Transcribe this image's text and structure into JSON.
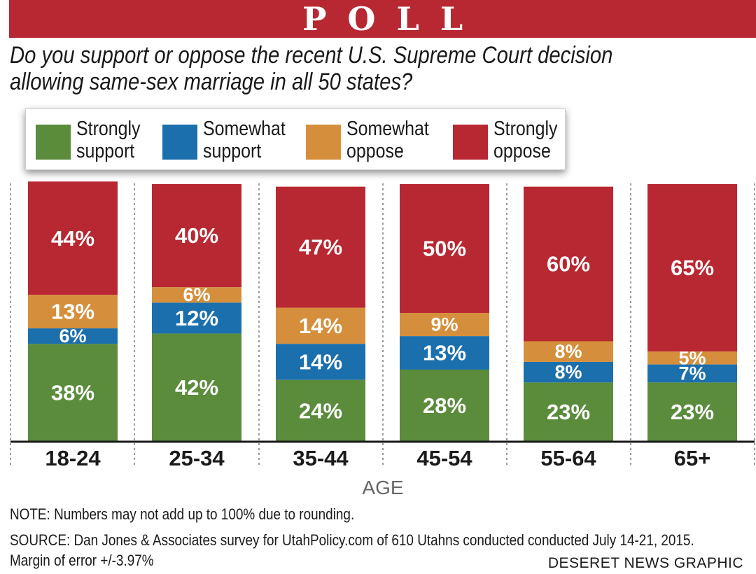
{
  "banner": {
    "title": "POLL"
  },
  "question": {
    "line1": "Do you support or oppose the recent U.S. Supreme Court decision",
    "line2": "allowing same-sex marriage in all 50 states?"
  },
  "colors": {
    "strongly_support": "#5a8c3c",
    "somewhat_support": "#1b6fad",
    "somewhat_oppose": "#d58f3c",
    "strongly_oppose": "#b82832"
  },
  "chart_data": {
    "type": "bar",
    "stacked": true,
    "title": "Do you support or oppose the recent U.S. Supreme Court decision allowing same-sex marriage in all 50 states?",
    "xlabel": "AGE",
    "ylabel": "",
    "ylim": [
      0,
      100
    ],
    "categories": [
      "18-24",
      "25-34",
      "35-44",
      "45-54",
      "55-64",
      "65+"
    ],
    "series": [
      {
        "name": "Strongly support",
        "color": "#5a8c3c",
        "values": [
          38,
          42,
          24,
          28,
          23,
          23
        ]
      },
      {
        "name": "Somewhat support",
        "color": "#1b6fad",
        "values": [
          6,
          12,
          14,
          13,
          8,
          7
        ]
      },
      {
        "name": "Somewhat oppose",
        "color": "#d58f3c",
        "values": [
          13,
          6,
          14,
          9,
          8,
          5
        ]
      },
      {
        "name": "Strongly oppose",
        "color": "#b82832",
        "values": [
          44,
          40,
          47,
          50,
          60,
          65
        ]
      }
    ],
    "legend": [
      {
        "line1": "Strongly",
        "line2": "support"
      },
      {
        "line1": "Somewhat",
        "line2": "support"
      },
      {
        "line1": "Somewhat",
        "line2": "oppose"
      },
      {
        "line1": "Strongly",
        "line2": "oppose"
      }
    ],
    "legend_position": "top-left",
    "grid": false
  },
  "notes": {
    "note": "NOTE: Numbers may not add up to 100% due to rounding.",
    "source": "SOURCE: Dan Jones & Associates survey for UtahPolicy.com of 610 Utahns conducted conducted July 14-21, 2015.",
    "margin": "Margin of error +/-3.97%",
    "credit": "DESERET NEWS GRAPHIC"
  }
}
